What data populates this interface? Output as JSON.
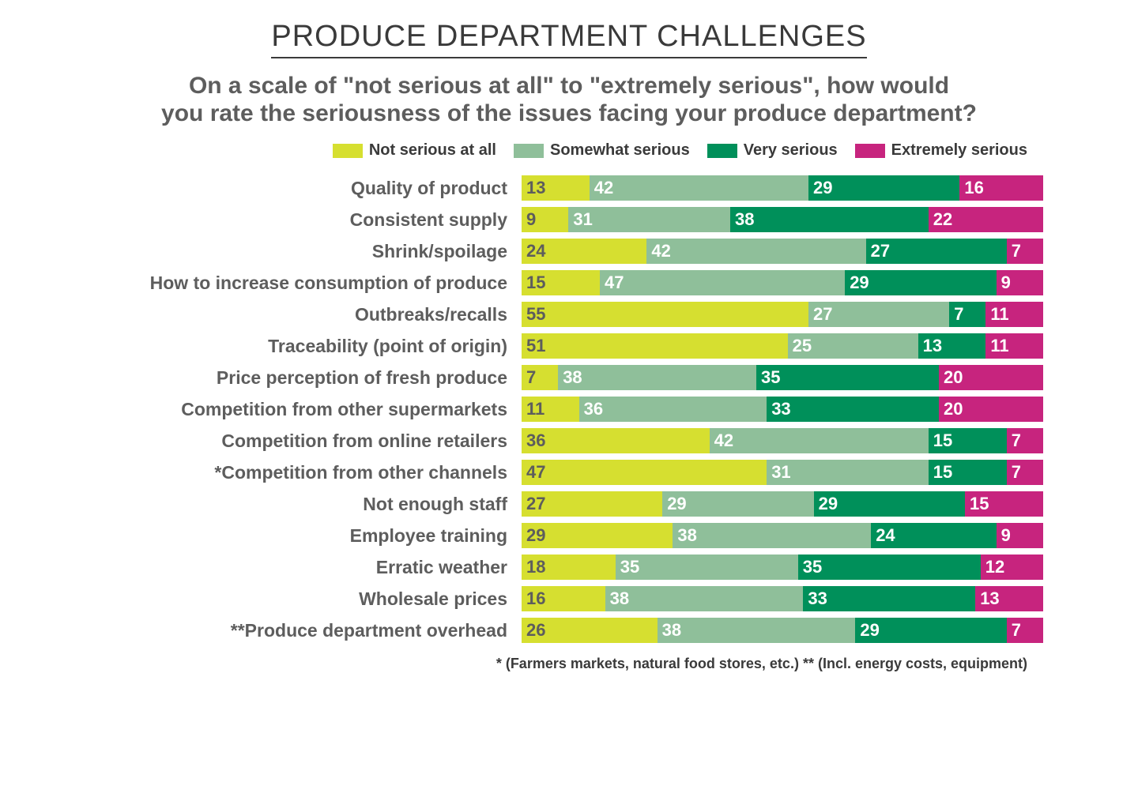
{
  "title": "PRODUCE DEPARTMENT CHALLENGES",
  "subtitle_line1": "On a scale of \"not serious at all\" to \"extremely serious\", how would",
  "subtitle_line2": "you rate the seriousness of the issues facing your produce department?",
  "title_fontsize": 38,
  "subtitle_fontsize": 30,
  "label_fontsize": 23,
  "legend_fontsize": 20,
  "value_fontsize": 22,
  "footnote_fontsize": 18,
  "colors": {
    "not_serious": "#d6df30",
    "somewhat": "#8fbf9a",
    "very": "#00905a",
    "extremely": "#c7247e",
    "title_text": "#3a3a3a",
    "sub_text": "#5d5d5d",
    "value_on_yellow": "#5d5d5d",
    "value_on_dark": "#ffffff",
    "bg": "#ffffff"
  },
  "legend": [
    {
      "label": "Not serious at all",
      "colorKey": "not_serious"
    },
    {
      "label": "Somewhat serious",
      "colorKey": "somewhat"
    },
    {
      "label": "Very serious",
      "colorKey": "very"
    },
    {
      "label": "Extremely serious",
      "colorKey": "extremely"
    }
  ],
  "series_keys": [
    "not_serious",
    "somewhat",
    "very",
    "extremely"
  ],
  "text_color_for": {
    "not_serious": "value_on_yellow",
    "somewhat": "value_on_dark",
    "very": "value_on_dark",
    "extremely": "value_on_dark"
  },
  "rows": [
    {
      "label": "Quality of product",
      "v": [
        13,
        42,
        29,
        16
      ]
    },
    {
      "label": "Consistent supply",
      "v": [
        9,
        31,
        38,
        22
      ]
    },
    {
      "label": "Shrink/spoilage",
      "v": [
        24,
        42,
        27,
        7
      ]
    },
    {
      "label": "How to increase consumption of produce",
      "v": [
        15,
        47,
        29,
        9
      ]
    },
    {
      "label": "Outbreaks/recalls",
      "v": [
        55,
        27,
        7,
        11
      ]
    },
    {
      "label": "Traceability (point of origin)",
      "v": [
        51,
        25,
        13,
        11
      ]
    },
    {
      "label": "Price perception of fresh produce",
      "v": [
        7,
        38,
        35,
        20
      ]
    },
    {
      "label": "Competition from other supermarkets",
      "v": [
        11,
        36,
        33,
        20
      ]
    },
    {
      "label": "Competition from online retailers",
      "v": [
        36,
        42,
        15,
        7
      ]
    },
    {
      "label": "*Competition from other channels",
      "v": [
        47,
        31,
        15,
        7
      ]
    },
    {
      "label": "Not enough staff",
      "v": [
        27,
        29,
        29,
        15
      ]
    },
    {
      "label": "Employee training",
      "v": [
        29,
        38,
        24,
        9
      ]
    },
    {
      "label": "Erratic weather",
      "v": [
        18,
        35,
        35,
        12
      ]
    },
    {
      "label": "Wholesale prices",
      "v": [
        16,
        38,
        33,
        13
      ]
    },
    {
      "label": "**Produce department overhead",
      "v": [
        26,
        38,
        29,
        7
      ]
    }
  ],
  "footnotes": "* (Farmers markets, natural food stores, etc.)   ** (Incl. energy costs, equipment)"
}
